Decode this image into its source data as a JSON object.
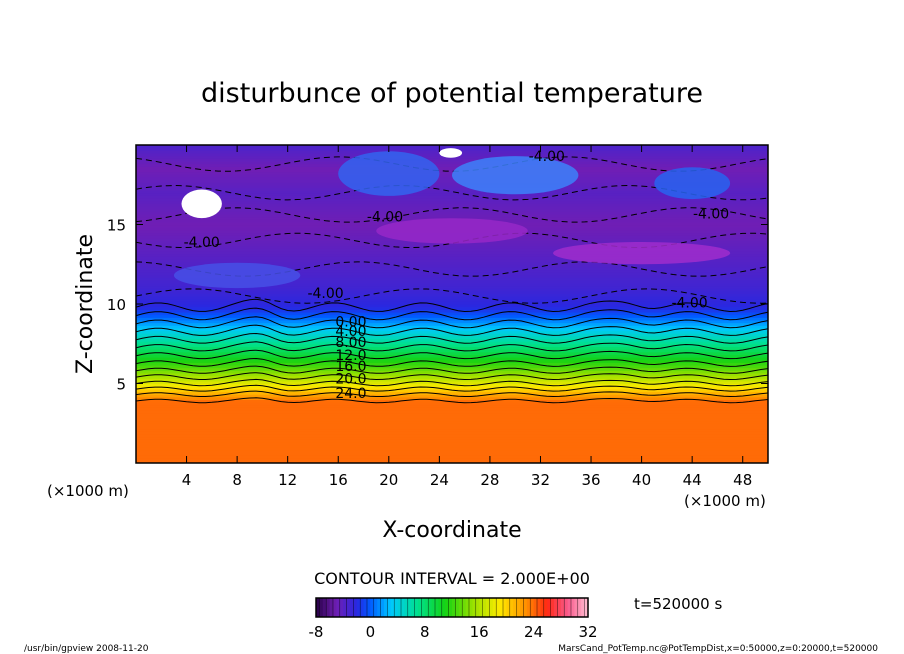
{
  "chart_data": {
    "type": "heatmap",
    "title": "disturbunce of potential temperature",
    "xlabel": "X-coordinate",
    "ylabel": "Z-coordinate",
    "x_unit": "(×1000 m)",
    "y_unit": "(×1000 m)",
    "xlim": [
      0,
      50
    ],
    "ylim": [
      0,
      20
    ],
    "x_ticks": [
      4,
      8,
      12,
      16,
      20,
      24,
      28,
      32,
      36,
      40,
      44,
      48
    ],
    "y_ticks": [
      5,
      10,
      15
    ],
    "contour_interval_text": "CONTOUR INTERVAL = 2.000E+00",
    "time_label": "t=520000 s",
    "colorbar": {
      "min": -8,
      "max": 32,
      "ticks": [
        -8,
        0,
        8,
        16,
        24,
        32
      ]
    },
    "contour_labels": [
      {
        "x": 32.5,
        "z": 19.3,
        "text": "-4.00"
      },
      {
        "x": 19.7,
        "z": 15.5,
        "text": "-4.00"
      },
      {
        "x": 45.5,
        "z": 15.7,
        "text": "-4.00"
      },
      {
        "x": 5.2,
        "z": 13.9,
        "text": "-4.00"
      },
      {
        "x": 15.0,
        "z": 10.7,
        "text": "-4.00"
      },
      {
        "x": 43.8,
        "z": 10.1,
        "text": "-4.00"
      },
      {
        "x": 17.0,
        "z": 8.9,
        "text": "0.00"
      },
      {
        "x": 17.0,
        "z": 8.3,
        "text": "4.00"
      },
      {
        "x": 17.0,
        "z": 7.6,
        "text": "8.00"
      },
      {
        "x": 17.0,
        "z": 6.8,
        "text": "12.0"
      },
      {
        "x": 17.0,
        "z": 6.1,
        "text": "16.0"
      },
      {
        "x": 17.0,
        "z": 5.3,
        "text": "20.0"
      },
      {
        "x": 17.0,
        "z": 4.4,
        "text": "24.0"
      }
    ],
    "profile": [
      {
        "z": 0,
        "theta": 24
      },
      {
        "z": 3.9,
        "theta": 24
      },
      {
        "z": 4.3,
        "theta": 22
      },
      {
        "z": 5.0,
        "theta": 18
      },
      {
        "z": 6.0,
        "theta": 13
      },
      {
        "z": 7.0,
        "theta": 9
      },
      {
        "z": 8.0,
        "theta": 5
      },
      {
        "z": 9.0,
        "theta": 1
      },
      {
        "z": 9.8,
        "theta": -2
      },
      {
        "z": 11.0,
        "theta": -3
      },
      {
        "z": 13.0,
        "theta": -4
      },
      {
        "z": 15.0,
        "theta": -5
      },
      {
        "z": 17.0,
        "theta": -4
      },
      {
        "z": 18.5,
        "theta": -5
      },
      {
        "z": 20.0,
        "theta": -3.5
      }
    ]
  },
  "footer": {
    "left": "/usr/bin/gpview   2008-11-20",
    "right": "MarsCand_PotTemp.nc@PotTempDist,x=0:50000,z=0:20000,t=520000"
  }
}
